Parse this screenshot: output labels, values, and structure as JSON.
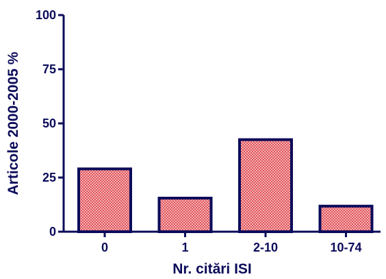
{
  "chart_data": {
    "type": "bar",
    "categories": [
      "0",
      "1",
      "2-10",
      "10-74"
    ],
    "values": [
      29,
      15.5,
      42.5,
      11.8
    ],
    "title": "",
    "xlabel": "Nr. citări ISI",
    "ylabel": "Articole 2000-2005 %",
    "ylim": [
      0,
      100
    ],
    "yticks": [
      0,
      25,
      50,
      75,
      100
    ],
    "grid": false,
    "legend": "none",
    "colors": {
      "axis": "#0b0b5a",
      "bar_fill": "#f4b6b6",
      "bar_pattern": "#e0505a",
      "bar_border": "#0b0b5a"
    }
  }
}
